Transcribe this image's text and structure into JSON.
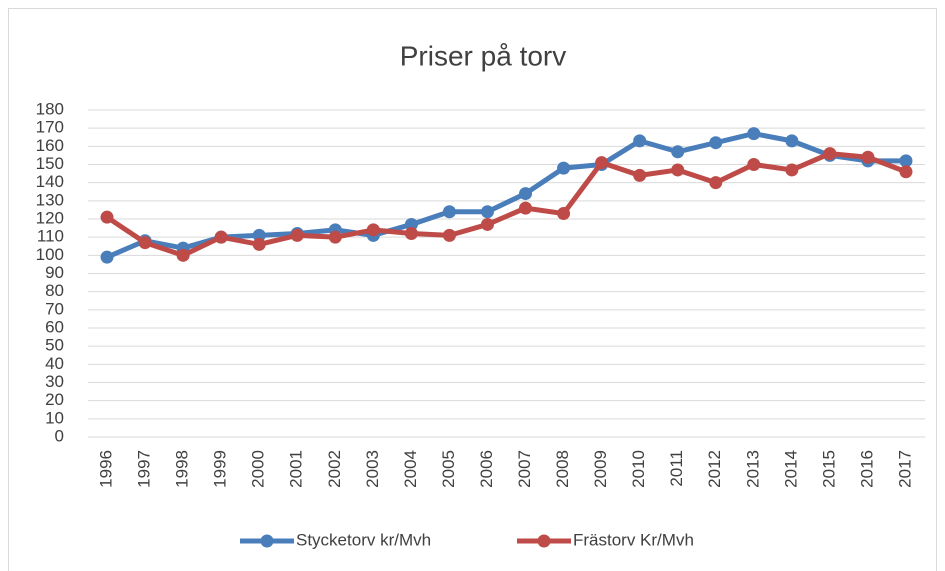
{
  "chart_data": {
    "type": "line",
    "title": "Priser på torv",
    "categories": [
      "1996",
      "1997",
      "1998",
      "1999",
      "2000",
      "2001",
      "2002",
      "2003",
      "2004",
      "2005",
      "2006",
      "2007",
      "2008",
      "2009",
      "2010",
      "2011",
      "2012",
      "2013",
      "2014",
      "2015",
      "2016",
      "2017"
    ],
    "series": [
      {
        "name": "Stycketorv kr/Mvh",
        "color": "#4a7ebb",
        "values": [
          99,
          108,
          104,
          110,
          111,
          112,
          114,
          111,
          117,
          124,
          124,
          134,
          148,
          150,
          163,
          157,
          162,
          167,
          163,
          155,
          152,
          152
        ]
      },
      {
        "name": "Frästorv Kr/Mvh",
        "color": "#be4b48",
        "values": [
          121,
          107,
          100,
          110,
          106,
          111,
          110,
          114,
          112,
          111,
          117,
          126,
          123,
          151,
          144,
          147,
          140,
          150,
          147,
          156,
          154,
          146
        ]
      }
    ],
    "ylim": [
      0,
      180
    ],
    "yticks": [
      0,
      10,
      20,
      30,
      40,
      50,
      60,
      70,
      80,
      90,
      100,
      110,
      120,
      130,
      140,
      150,
      160,
      170,
      180
    ],
    "grid": true,
    "legend": "bottom"
  }
}
